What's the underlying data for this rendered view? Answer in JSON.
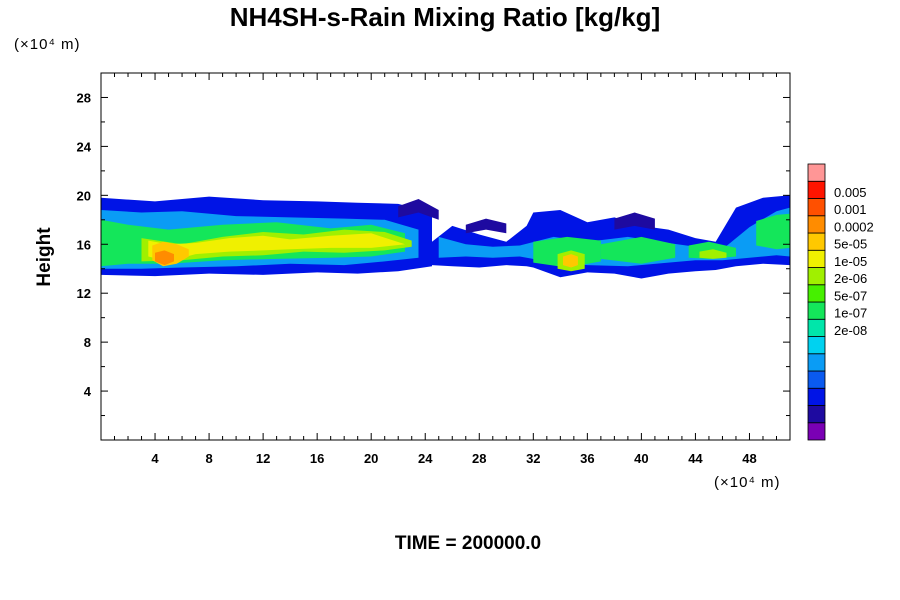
{
  "chart_data": {
    "type": "heatmap",
    "title": "NH4SH-s-Rain Mixing Ratio [kg/kg]",
    "ylabel": "Height",
    "x_unit": "(×10⁴ m)",
    "y_unit": "(×10⁴ m)",
    "xlim": [
      0,
      51
    ],
    "ylim": [
      0,
      30
    ],
    "x_ticks": [
      4,
      8,
      12,
      16,
      20,
      24,
      28,
      32,
      36,
      40,
      44,
      48
    ],
    "y_ticks": [
      4,
      8,
      12,
      16,
      20,
      24,
      28
    ],
    "time_label": "TIME = 200000.0",
    "colorbar": {
      "labels": [
        "0.005",
        "0.001",
        "0.0002",
        "5e-05",
        "1e-05",
        "2e-06",
        "5e-07",
        "1e-07",
        "2e-08"
      ],
      "colors_bottom_to_top": [
        "#7a00b4",
        "#1e0aa0",
        "#0014e6",
        "#0a5af0",
        "#0a9cf5",
        "#00d2f0",
        "#00e6aa",
        "#14e65a",
        "#46f000",
        "#a0f000",
        "#f0f000",
        "#ffc800",
        "#ff8c00",
        "#ff5000",
        "#ff1400",
        "#ff9696"
      ]
    },
    "regions": [
      {
        "level": 2,
        "x": [
          0,
          4,
          8,
          12,
          16,
          19,
          22,
          24.5
        ],
        "top": [
          19.8,
          19.5,
          19.9,
          19.6,
          19.5,
          19.4,
          19.3,
          18.6
        ],
        "bottom": [
          13.5,
          13.4,
          13.6,
          13.5,
          13.7,
          13.6,
          13.8,
          14.2
        ]
      },
      {
        "level": 2,
        "x": [
          24.5,
          26,
          28,
          30,
          31.5,
          32,
          34,
          36,
          38,
          40,
          42,
          44,
          45.5,
          47,
          49,
          51
        ],
        "top": [
          16.2,
          17.5,
          16.8,
          16.2,
          17.5,
          18.6,
          18.8,
          17.8,
          18.2,
          17.5,
          17.2,
          16.5,
          16.2,
          19.0,
          19.8,
          20.0
        ],
        "bottom": [
          14.3,
          14.2,
          14.1,
          14.3,
          14.2,
          14.1,
          13.3,
          13.7,
          13.6,
          13.2,
          13.6,
          13.8,
          13.9,
          14.2,
          14.4,
          14.3
        ]
      },
      {
        "level": 1,
        "x": [
          22,
          23.5,
          25
        ],
        "top": [
          19.1,
          19.7,
          18.8
        ],
        "bottom": [
          18.2,
          18.6,
          18.0
        ]
      },
      {
        "level": 1,
        "x": [
          27,
          28.5,
          30
        ],
        "top": [
          17.6,
          18.1,
          17.7
        ],
        "bottom": [
          16.9,
          17.2,
          16.9
        ]
      },
      {
        "level": 1,
        "x": [
          38,
          39.5,
          41
        ],
        "top": [
          18.1,
          18.6,
          18.1
        ],
        "bottom": [
          17.2,
          17.5,
          17.2
        ]
      },
      {
        "level": 4,
        "x": [
          0,
          3,
          6,
          10,
          14,
          18,
          21,
          23.5
        ],
        "top": [
          18.8,
          18.6,
          18.7,
          18.3,
          18.2,
          18.1,
          18.0,
          17.2
        ],
        "bottom": [
          14.0,
          14.0,
          14.1,
          14.2,
          14.4,
          14.3,
          14.6,
          14.9
        ]
      },
      {
        "level": 4,
        "x": [
          25,
          27,
          29,
          31,
          33.5,
          36,
          39,
          42,
          44,
          46,
          48,
          50,
          51
        ],
        "top": [
          16.6,
          16.0,
          15.8,
          15.9,
          16.6,
          16.2,
          16.6,
          16.1,
          15.8,
          15.6,
          17.4,
          18.7,
          19.0
        ],
        "bottom": [
          14.9,
          15.0,
          14.9,
          15.0,
          14.5,
          14.3,
          14.2,
          14.5,
          14.7,
          14.7,
          14.9,
          15.1,
          15.0
        ]
      },
      {
        "level": 7,
        "x": [
          0,
          2,
          5,
          9,
          13,
          17,
          20,
          22.5
        ],
        "top": [
          18.0,
          17.6,
          17.2,
          17.6,
          17.8,
          17.3,
          17.6,
          16.9
        ],
        "bottom": [
          14.2,
          14.4,
          14.4,
          14.7,
          14.8,
          14.9,
          15.0,
          15.4
        ]
      },
      {
        "level": 7,
        "x": [
          32,
          34.5,
          37
        ],
        "top": [
          16.2,
          16.6,
          16.3
        ],
        "bottom": [
          14.5,
          14.1,
          14.6
        ]
      },
      {
        "level": 7,
        "x": [
          37,
          40,
          42.5
        ],
        "top": [
          16.0,
          16.6,
          16.0
        ],
        "bottom": [
          14.8,
          14.4,
          14.9
        ]
      },
      {
        "level": 7,
        "x": [
          43.5,
          45,
          47
        ],
        "top": [
          15.9,
          16.2,
          15.7
        ],
        "bottom": [
          14.9,
          14.8,
          15.0
        ]
      },
      {
        "level": 7,
        "x": [
          48.5,
          50,
          51
        ],
        "top": [
          17.9,
          18.4,
          18.5
        ],
        "bottom": [
          15.9,
          15.6,
          15.7
        ]
      },
      {
        "level": 9,
        "x": [
          3,
          6,
          9,
          12,
          15,
          18,
          21,
          23
        ],
        "top": [
          16.5,
          16.0,
          16.6,
          17.0,
          16.8,
          17.2,
          17.0,
          16.3
        ],
        "bottom": [
          14.6,
          14.7,
          15.0,
          15.1,
          15.4,
          15.3,
          15.5,
          15.8
        ]
      },
      {
        "level": 9,
        "x": [
          33.8,
          34.8,
          35.8
        ],
        "top": [
          15.2,
          15.5,
          15.2
        ],
        "bottom": [
          14.0,
          13.8,
          14.0
        ]
      },
      {
        "level": 9,
        "x": [
          44.3,
          45.3,
          46.3
        ],
        "top": [
          15.4,
          15.6,
          15.3
        ],
        "bottom": [
          14.9,
          14.8,
          14.9
        ]
      },
      {
        "level": 10,
        "x": [
          3.5,
          5,
          7,
          9.5,
          12,
          14,
          17,
          20,
          22.5
        ],
        "top": [
          16.3,
          16.0,
          16.1,
          16.5,
          16.7,
          16.4,
          16.7,
          16.9,
          16.0
        ],
        "bottom": [
          15.0,
          14.6,
          15.2,
          15.4,
          15.5,
          15.6,
          15.7,
          15.7,
          16.0
        ]
      },
      {
        "level": 11,
        "x": [
          3.8,
          4.6,
          5.6,
          6.5
        ],
        "top": [
          15.9,
          16.2,
          16.0,
          15.6
        ],
        "bottom": [
          14.7,
          14.2,
          14.4,
          15.0
        ]
      },
      {
        "level": 11,
        "x": [
          34.2,
          34.8,
          35.3
        ],
        "top": [
          15.0,
          15.2,
          15.0
        ],
        "bottom": [
          14.3,
          14.1,
          14.3
        ]
      },
      {
        "level": 12,
        "x": [
          4.0,
          4.7,
          5.4
        ],
        "top": [
          15.3,
          15.5,
          15.2
        ],
        "bottom": [
          14.6,
          14.3,
          14.6
        ]
      }
    ]
  }
}
